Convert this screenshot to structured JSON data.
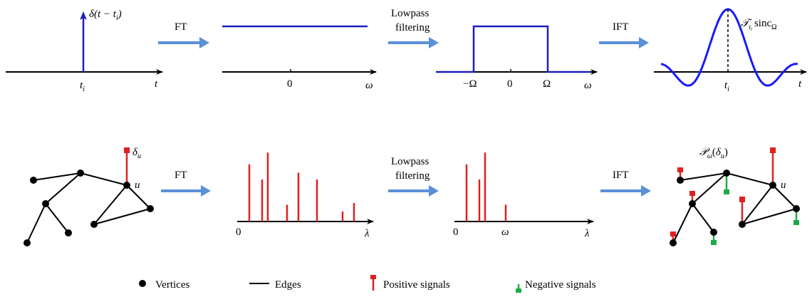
{
  "top_row": {
    "panel1": {
      "label_math": "δ(t − t",
      "label_sub": "i",
      "label_close": ")",
      "tick_label": "t",
      "tick_sub": "i",
      "axis_label": "t"
    },
    "arrow1": {
      "label": "FT"
    },
    "panel2": {
      "zero": "0",
      "axis_label": "ω"
    },
    "arrow2": {
      "label_line1": "Lowpass",
      "label_line2": "filtering"
    },
    "panel3": {
      "neg_omega": "−Ω",
      "zero": "0",
      "pos_omega": "Ω",
      "axis_label": "ω"
    },
    "arrow3": {
      "label": "IFT"
    },
    "panel4": {
      "label_T": "𝒯",
      "label_T_sub": "t",
      "label_T_subsub": "i",
      "label_sinc": "sinc",
      "label_sinc_sub": "Ω",
      "tick_label": "t",
      "tick_sub": "i",
      "axis_label": "t"
    }
  },
  "bottom_row": {
    "graph1": {
      "delta_label": "δ",
      "delta_sub": "u",
      "node_label": "u"
    },
    "arrow1": {
      "label": "FT"
    },
    "spectrum1": {
      "zero": "0",
      "axis_label": "λ",
      "values": [
        0.68,
        0.5,
        0.82,
        0.2,
        0.58,
        0.5,
        0.12,
        0.22
      ]
    },
    "arrow2": {
      "label_line1": "Lowpass",
      "label_line2": "filtering"
    },
    "spectrum2": {
      "zero": "0",
      "cutoff_label": "ω",
      "axis_label": "λ",
      "values": [
        0.68,
        0.5,
        0.82,
        0.2
      ]
    },
    "arrow3": {
      "label": "IFT"
    },
    "graph2": {
      "label_P": "𝒫",
      "label_P_sub": "ω",
      "label_arg": "δ",
      "label_arg_sub": "u",
      "node_label": "u"
    }
  },
  "legend": {
    "vertices": "Vertices",
    "edges": "Edges",
    "positive": "Positive signals",
    "negative": "Negative signals"
  },
  "colors": {
    "axis": "#000000",
    "signal_blue": "#1f1fbf",
    "sinc_blue": "#1a1aff",
    "arrow": "#5b8fd8",
    "positive": "#e02020",
    "negative": "#1faa4a"
  }
}
